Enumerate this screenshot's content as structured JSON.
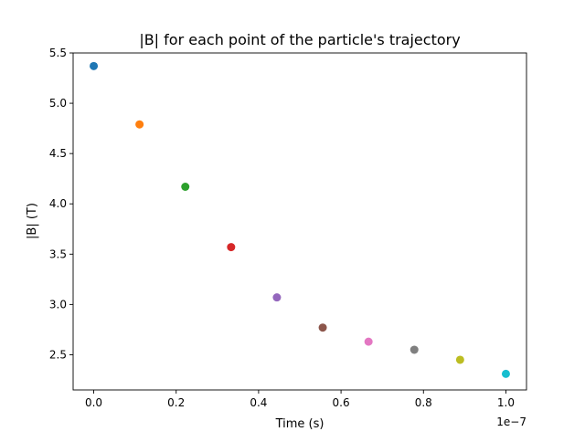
{
  "chart_data": {
    "type": "scatter",
    "title": "|B| for each point of the particle's trajectory",
    "xlabel": "Time (s)",
    "ylabel": "|B| (T)",
    "x_offset_label": "1e−7",
    "xlim": [
      -0.05,
      1.05
    ],
    "ylim": [
      2.15,
      5.5
    ],
    "x_scale_factor": 1e-07,
    "x_ticks": [
      0.0,
      0.2,
      0.4,
      0.6,
      0.8,
      1.0
    ],
    "x_tick_labels": [
      "0.0",
      "0.2",
      "0.4",
      "0.6",
      "0.8",
      "1.0"
    ],
    "y_ticks": [
      2.5,
      3.0,
      3.5,
      4.0,
      4.5,
      5.0,
      5.5
    ],
    "y_tick_labels": [
      "2.5",
      "3.0",
      "3.5",
      "4.0",
      "4.5",
      "5.0",
      "5.5"
    ],
    "grid": false,
    "legend": "none",
    "points": [
      {
        "x": 0.0,
        "y": 5.37,
        "color": "#1f77b4"
      },
      {
        "x": 0.1111,
        "y": 4.79,
        "color": "#ff7f0e"
      },
      {
        "x": 0.2222,
        "y": 4.17,
        "color": "#2ca02c"
      },
      {
        "x": 0.3333,
        "y": 3.57,
        "color": "#d62728"
      },
      {
        "x": 0.4444,
        "y": 3.07,
        "color": "#9467bd"
      },
      {
        "x": 0.5556,
        "y": 2.77,
        "color": "#8c564b"
      },
      {
        "x": 0.6667,
        "y": 2.63,
        "color": "#e377c2"
      },
      {
        "x": 0.7778,
        "y": 2.55,
        "color": "#7f7f7f"
      },
      {
        "x": 0.8889,
        "y": 2.45,
        "color": "#bcbd22"
      },
      {
        "x": 1.0,
        "y": 2.31,
        "color": "#17becf"
      }
    ]
  }
}
